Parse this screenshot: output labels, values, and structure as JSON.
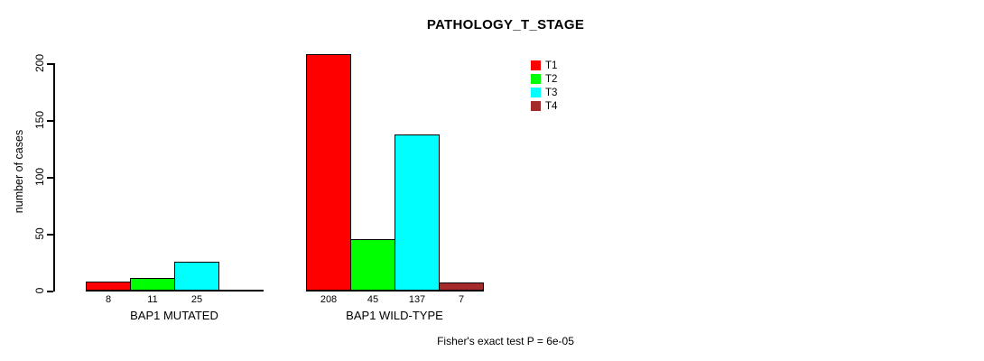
{
  "chart_data": {
    "type": "bar",
    "title": "PATHOLOGY_T_STAGE",
    "xlabel": "",
    "ylabel": "number of cases",
    "groups": [
      "BAP1 MUTATED",
      "BAP1 WILD-TYPE"
    ],
    "series": [
      {
        "name": "T1",
        "color": "#ff0000",
        "values": [
          8,
          208
        ]
      },
      {
        "name": "T2",
        "color": "#00ff00",
        "values": [
          11,
          45
        ]
      },
      {
        "name": "T3",
        "color": "#00ffff",
        "values": [
          25,
          137
        ]
      },
      {
        "name": "T4",
        "color": "#a52a2a",
        "values": [
          0,
          7
        ]
      }
    ],
    "yticks": [
      0,
      50,
      100,
      150,
      200
    ],
    "ylim": [
      0,
      200
    ],
    "grid": false,
    "legend_position": "top-right",
    "bar_labels_hide_zero": true,
    "annotation": "Fisher's exact test P = 6e-05"
  }
}
